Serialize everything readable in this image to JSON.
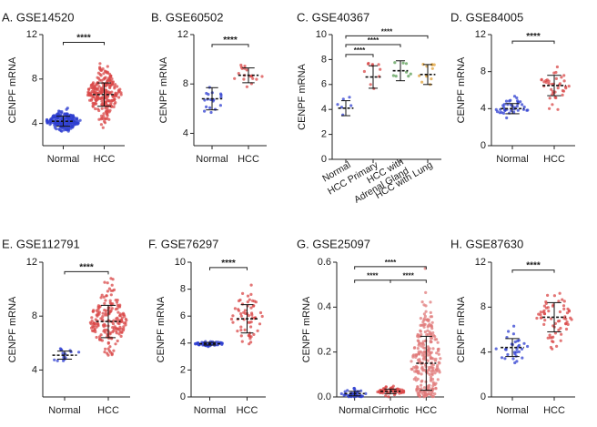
{
  "chart_data": [
    {
      "type": "scatter",
      "title": "A. GSE14520",
      "ylabel": "CENPF mRNA",
      "ylim": [
        2,
        12
      ],
      "yticks": [
        "4",
        "8",
        "12"
      ],
      "categories": [
        "Normal",
        "HCC"
      ],
      "series": [
        {
          "name": "Normal",
          "color": "#2f3fd0",
          "n": 220,
          "mean": 4.2,
          "sd": 0.45,
          "min": 3.3,
          "max": 7.0
        },
        {
          "name": "HCC",
          "color": "#d94848",
          "n": 250,
          "mean": 6.6,
          "sd": 1.05,
          "min": 3.6,
          "max": 9.5
        }
      ],
      "comparisons": [
        {
          "from": "Normal",
          "to": "HCC",
          "label": "****",
          "y": 11.3
        }
      ]
    },
    {
      "type": "scatter",
      "title": "B. GSE60502",
      "ylabel": "CENPF mRNA",
      "ylim": [
        3,
        12
      ],
      "yticks": [
        "4",
        "8",
        "12"
      ],
      "categories": [
        "Normal",
        "HCC"
      ],
      "series": [
        {
          "name": "Normal",
          "color": "#2f3fd0",
          "n": 18,
          "mean": 6.8,
          "sd": 0.9,
          "min": 5.2,
          "max": 7.9
        },
        {
          "name": "HCC",
          "color": "#d94848",
          "n": 18,
          "mean": 8.7,
          "sd": 0.6,
          "min": 7.6,
          "max": 10.0
        }
      ],
      "comparisons": [
        {
          "from": "Normal",
          "to": "HCC",
          "label": "****",
          "y": 11.2
        }
      ]
    },
    {
      "type": "scatter",
      "title": "C. GSE40367",
      "ylabel": "CENPF mRNA",
      "ylim": [
        0,
        10
      ],
      "yticks": [
        "0",
        "2",
        "4",
        "6",
        "8",
        "10"
      ],
      "categories": [
        "Normal",
        "HCC Primary",
        "HCC with Adrenal Gland",
        "HCC with Lung"
      ],
      "xticklabels": [
        "Normal",
        "HCC Primary",
        "HCC with\nAdrenal Gland",
        "HCC with Lung"
      ],
      "series": [
        {
          "name": "Normal",
          "color": "#2f3fd0",
          "n": 6,
          "mean": 4.1,
          "sd": 0.6,
          "min": 3.4,
          "max": 5.0
        },
        {
          "name": "HCC Primary",
          "color": "#d94848",
          "n": 10,
          "mean": 6.6,
          "sd": 0.9,
          "min": 5.6,
          "max": 7.8
        },
        {
          "name": "HCC with Adrenal Gland",
          "color": "#5a9e54",
          "n": 8,
          "mean": 7.1,
          "sd": 0.8,
          "min": 6.2,
          "max": 8.0
        },
        {
          "name": "HCC with Lung",
          "color": "#e0a13a",
          "n": 12,
          "mean": 6.8,
          "sd": 0.8,
          "min": 5.8,
          "max": 7.8
        }
      ],
      "comparisons": [
        {
          "from": "Normal",
          "to": "HCC Primary",
          "label": "****",
          "y": 8.4
        },
        {
          "from": "Normal",
          "to": "HCC with Adrenal Gland",
          "label": "****",
          "y": 9.2
        },
        {
          "from": "Normal",
          "to": "HCC with Lung",
          "label": "****",
          "y": 9.9
        }
      ]
    },
    {
      "type": "scatter",
      "title": "D. GSE84005",
      "ylabel": "CENPF mRNA",
      "ylim": [
        0,
        12
      ],
      "yticks": [
        "0",
        "4",
        "8",
        "12"
      ],
      "categories": [
        "Normal",
        "HCC"
      ],
      "series": [
        {
          "name": "Normal",
          "color": "#2f3fd0",
          "n": 38,
          "mean": 4.0,
          "sd": 0.55,
          "min": 3.0,
          "max": 7.0
        },
        {
          "name": "HCC",
          "color": "#d94848",
          "n": 38,
          "mean": 6.5,
          "sd": 1.1,
          "min": 3.8,
          "max": 9.6
        }
      ],
      "comparisons": [
        {
          "from": "Normal",
          "to": "HCC",
          "label": "****",
          "y": 11.3
        }
      ]
    },
    {
      "type": "scatter",
      "title": "E. GSE112791",
      "ylabel": "CENPF mRNA",
      "ylim": [
        2,
        12
      ],
      "yticks": [
        "4",
        "8",
        "12"
      ],
      "categories": [
        "Normal",
        "HCC"
      ],
      "series": [
        {
          "name": "Normal",
          "color": "#2f3fd0",
          "n": 15,
          "mean": 5.1,
          "sd": 0.3,
          "min": 4.6,
          "max": 5.6
        },
        {
          "name": "HCC",
          "color": "#d94848",
          "n": 183,
          "mean": 7.6,
          "sd": 1.2,
          "min": 5.0,
          "max": 11.0
        }
      ],
      "comparisons": [
        {
          "from": "Normal",
          "to": "HCC",
          "label": "****",
          "y": 11.3
        }
      ]
    },
    {
      "type": "scatter",
      "title": "F. GSE76297",
      "ylabel": "CENPF mRNA",
      "ylim": [
        0,
        10
      ],
      "yticks": [
        "0",
        "2",
        "4",
        "6",
        "8",
        "10"
      ],
      "categories": [
        "Normal",
        "HCC"
      ],
      "series": [
        {
          "name": "Normal",
          "color": "#2f3fd0",
          "n": 60,
          "mean": 3.95,
          "sd": 0.1,
          "min": 3.7,
          "max": 4.2
        },
        {
          "name": "HCC",
          "color": "#d94848",
          "n": 60,
          "mean": 5.8,
          "sd": 1.05,
          "min": 3.9,
          "max": 8.5
        }
      ],
      "comparisons": [
        {
          "from": "Normal",
          "to": "HCC",
          "label": "****",
          "y": 9.6
        }
      ]
    },
    {
      "type": "scatter",
      "title": "G. GSE25097",
      "ylabel": "CENPF mRNA",
      "ylim": [
        0,
        0.6
      ],
      "yticks": [
        "0.0",
        "0.2",
        "0.4",
        "0.6"
      ],
      "categories": [
        "Normal",
        "Cirrhotic",
        "HCC"
      ],
      "series": [
        {
          "name": "Normal",
          "color": "#2f3fd0",
          "n": 40,
          "mean": 0.015,
          "sd": 0.01,
          "min": 0.0,
          "max": 0.11
        },
        {
          "name": "Cirrhotic",
          "color": "#d94848",
          "n": 60,
          "mean": 0.025,
          "sd": 0.01,
          "min": 0.0,
          "max": 0.1
        },
        {
          "name": "HCC",
          "color": "#e07a7a",
          "n": 260,
          "mean": 0.15,
          "sd": 0.12,
          "min": 0.0,
          "max": 0.6
        }
      ],
      "comparisons": [
        {
          "from": "Normal",
          "to": "Cirrhotic",
          "label": "****",
          "y": 0.52
        },
        {
          "from": "Cirrhotic",
          "to": "HCC",
          "label": "****",
          "y": 0.52
        },
        {
          "from": "Normal",
          "to": "HCC",
          "label": "****",
          "y": 0.58
        }
      ]
    },
    {
      "type": "scatter",
      "title": "H. GSE87630",
      "ylabel": "CENPF mRNA",
      "ylim": [
        0,
        12
      ],
      "yticks": [
        "0",
        "4",
        "8",
        "12"
      ],
      "categories": [
        "Normal",
        "HCC"
      ],
      "series": [
        {
          "name": "Normal",
          "color": "#2f3fd0",
          "n": 30,
          "mean": 4.4,
          "sd": 0.8,
          "min": 3.0,
          "max": 7.0
        },
        {
          "name": "HCC",
          "color": "#d94848",
          "n": 64,
          "mean": 7.1,
          "sd": 1.3,
          "min": 4.0,
          "max": 10.0
        }
      ],
      "comparisons": [
        {
          "from": "Normal",
          "to": "HCC",
          "label": "****",
          "y": 11.3
        }
      ]
    }
  ]
}
